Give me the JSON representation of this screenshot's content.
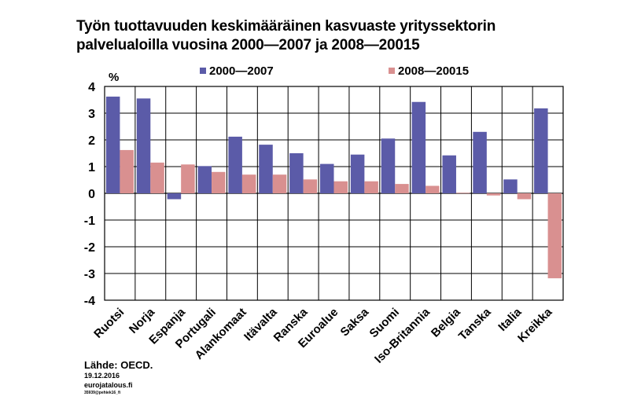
{
  "chart_data": {
    "type": "bar",
    "title_lines": [
      "Työn tuottavuuden keskimääräinen kasvuaste yrityssektorin",
      "palvelualoilla vuosina 2000—2007 ja 2008—20015"
    ],
    "ylabel": "%",
    "ylim": [
      -4,
      4
    ],
    "yticks": [
      "4",
      "3",
      "2",
      "1",
      "0",
      "-1",
      "-2",
      "-3",
      "-4"
    ],
    "legend_position": "top",
    "grid": "horizontal",
    "categories": [
      "Ruotsi",
      "Norja",
      "Espanja",
      "Portugali",
      "Alankomaat",
      "Itävalta",
      "Ranska",
      "Euroalue",
      "Saksa",
      "Suomi",
      "Iso-Britannia",
      "Belgia",
      "Tanska",
      "Italia",
      "Kreikka"
    ],
    "series": [
      {
        "name": "2000—2007",
        "color": "#5b5ba8",
        "values": [
          3.62,
          3.55,
          -0.22,
          1.02,
          2.12,
          1.82,
          1.5,
          1.1,
          1.45,
          2.05,
          3.42,
          1.42,
          2.3,
          0.52,
          3.18
        ]
      },
      {
        "name": "2008—20015",
        "color": "#d99090",
        "values": [
          1.62,
          1.15,
          1.08,
          0.8,
          0.7,
          0.7,
          0.52,
          0.45,
          0.45,
          0.35,
          0.28,
          0.02,
          -0.08,
          -0.22,
          -3.18
        ]
      }
    ]
  },
  "source": {
    "label": "Lähde: OECD.",
    "date": "19.12.2016",
    "site": "eurojatalous.fi",
    "code": "35939@pehiek16_fi"
  }
}
